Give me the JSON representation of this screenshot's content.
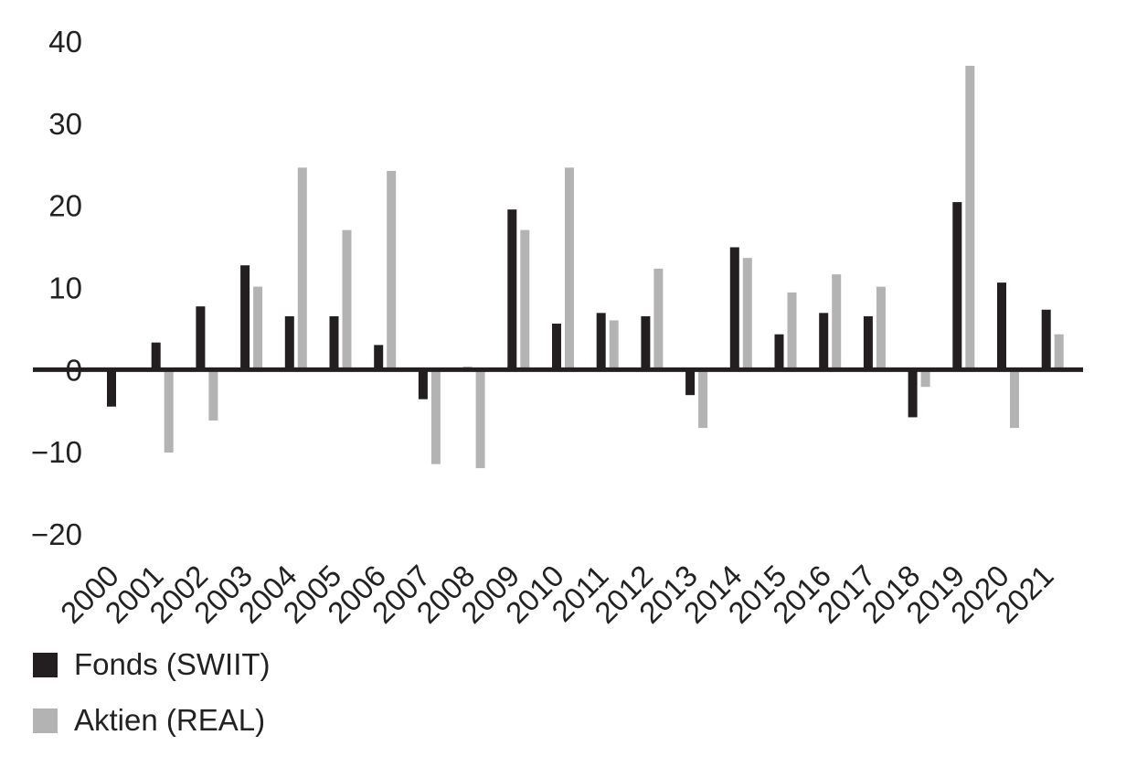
{
  "chart_data": {
    "type": "bar",
    "categories": [
      "2000",
      "2001",
      "2002",
      "2003",
      "2004",
      "2005",
      "2006",
      "2007",
      "2008",
      "2009",
      "2010",
      "2011",
      "2012",
      "2013",
      "2014",
      "2015",
      "2016",
      "2017",
      "2018",
      "2019",
      "2020",
      "2021"
    ],
    "series": [
      {
        "name": "Fonds (SWIIT)",
        "color": "#231f20",
        "values": [
          -4.5,
          3.3,
          7.7,
          12.7,
          6.5,
          6.5,
          3.0,
          -3.6,
          0.3,
          19.5,
          5.6,
          6.9,
          6.5,
          -3.1,
          14.9,
          4.3,
          6.9,
          6.5,
          -5.8,
          20.4,
          10.6,
          7.3
        ]
      },
      {
        "name": "Aktien (REAL)",
        "color": "#b3b3b3",
        "values": [
          0,
          -10.1,
          -6.2,
          10.1,
          24.6,
          17.0,
          24.2,
          -11.5,
          -12.0,
          17.0,
          24.6,
          6.0,
          12.3,
          -7.1,
          13.6,
          9.4,
          11.6,
          10.1,
          -2.1,
          37.0,
          -7.1,
          4.3
        ]
      }
    ],
    "ylim": [
      -20,
      40
    ],
    "yticks": [
      "40",
      "30",
      "20",
      "10",
      "0",
      "−10",
      "−20"
    ],
    "grid": false,
    "legend_position": "bottom-left"
  },
  "legend": {
    "items": [
      {
        "label": "Fonds (SWIIT)",
        "color": "#231f20"
      },
      {
        "label": "Aktien (REAL)",
        "color": "#b3b3b3"
      }
    ]
  }
}
